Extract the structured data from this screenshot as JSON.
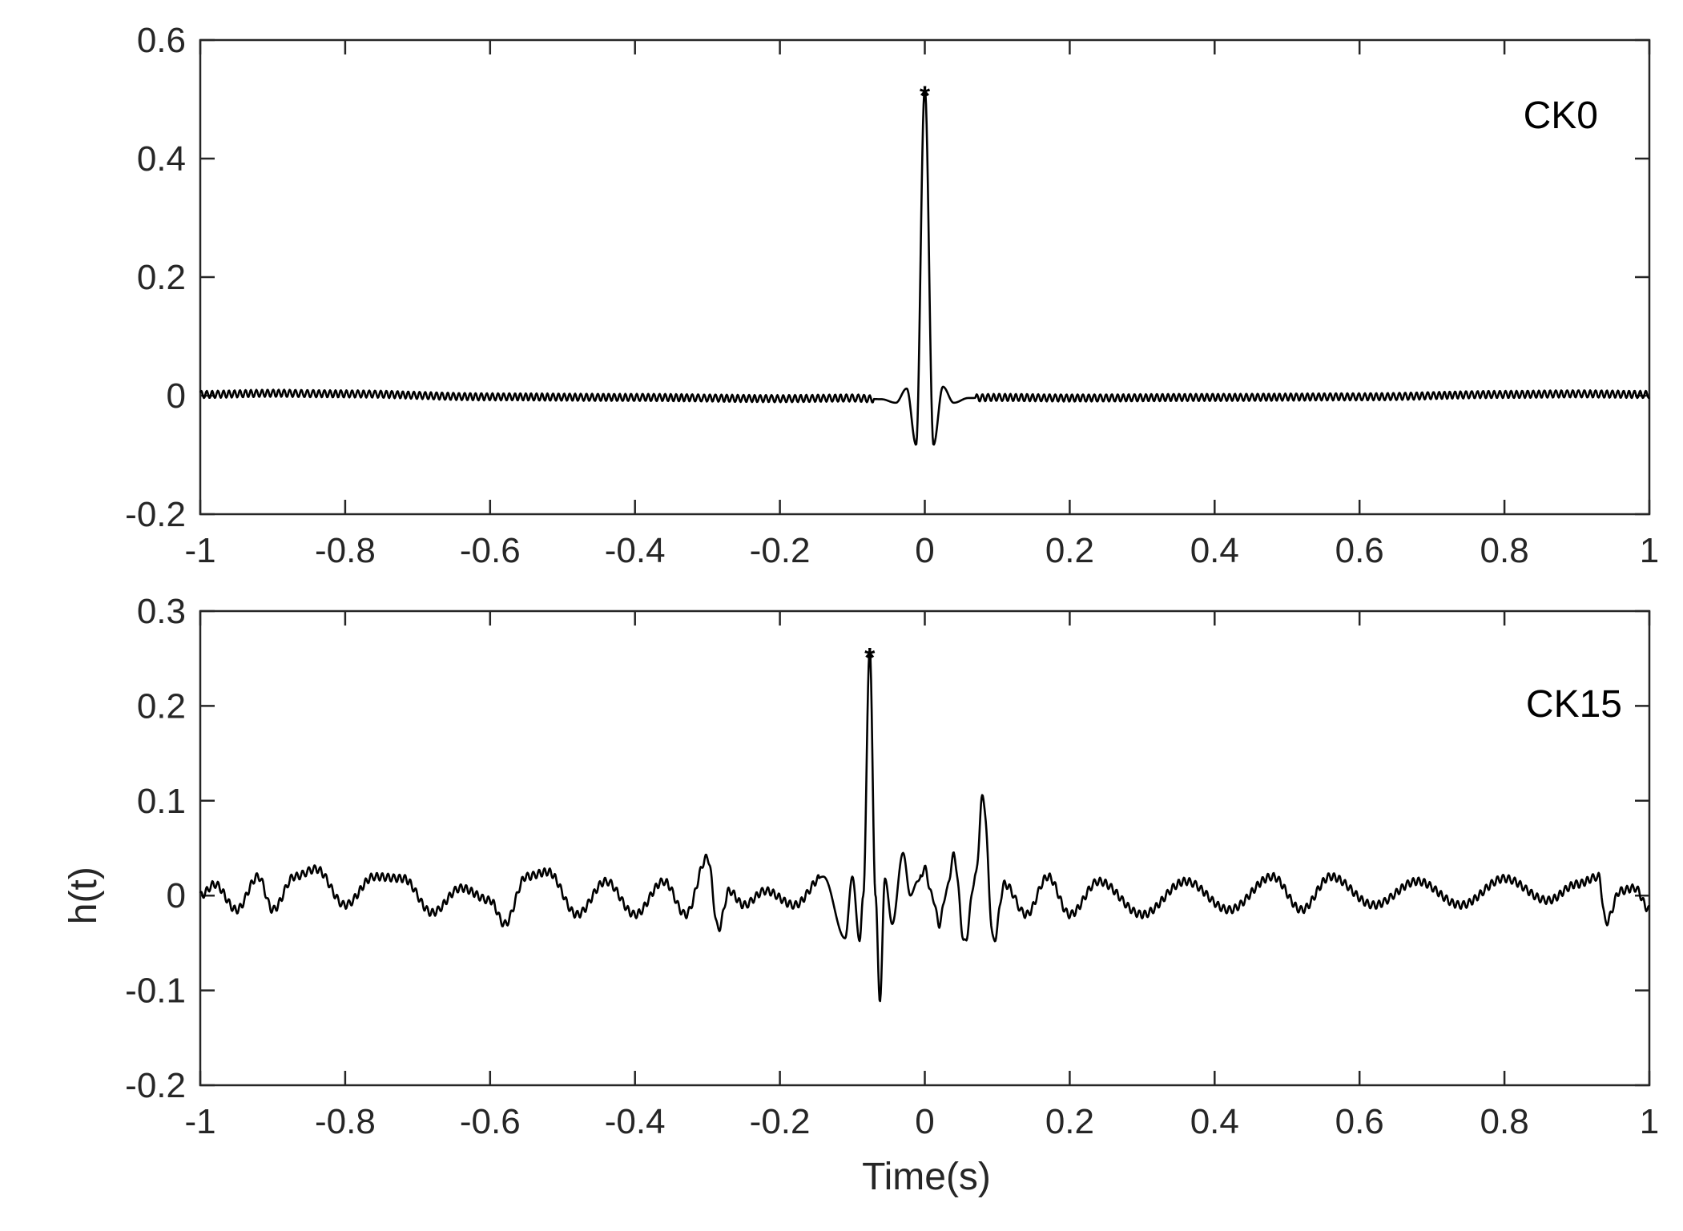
{
  "chart_data": [
    {
      "type": "line",
      "panel_label": "CK0",
      "xlabel": "",
      "ylabel": "",
      "xlim": [
        -1,
        1
      ],
      "ylim": [
        -0.2,
        0.6
      ],
      "x_ticks": [
        "-1",
        "-0.8",
        "-0.6",
        "-0.4",
        "-0.2",
        "0",
        "0.2",
        "0.4",
        "0.6",
        "0.8",
        "1"
      ],
      "y_ticks": [
        "-0.2",
        "0",
        "0.2",
        "0.4",
        "0.6"
      ],
      "grid": false,
      "line_color": "#000000",
      "peak_marker": {
        "x": 0.0,
        "y": 0.52,
        "symbol": "*"
      },
      "series": [
        {
          "x": [
            -1.0,
            -0.9,
            -0.8,
            -0.6,
            -0.4,
            -0.2,
            -0.1,
            -0.06,
            -0.04,
            -0.025,
            -0.012,
            0.0,
            0.012,
            0.025,
            0.04,
            0.06,
            0.1,
            0.2,
            0.4,
            0.6,
            0.8,
            0.9,
            1.0
          ],
          "values": [
            0.002,
            0.004,
            0.003,
            -0.002,
            -0.003,
            -0.005,
            -0.004,
            -0.006,
            -0.012,
            0.012,
            -0.083,
            0.52,
            -0.083,
            0.015,
            -0.012,
            -0.004,
            -0.003,
            -0.004,
            -0.003,
            -0.002,
            0.002,
            0.003,
            0.002
          ]
        }
      ]
    },
    {
      "type": "line",
      "panel_label": "CK15",
      "xlabel": "Time(s)",
      "ylabel": "h(t)",
      "xlim": [
        -1,
        1
      ],
      "ylim": [
        -0.2,
        0.3
      ],
      "x_ticks": [
        "-1",
        "-0.8",
        "-0.6",
        "-0.4",
        "-0.2",
        "0",
        "0.2",
        "0.4",
        "0.6",
        "0.8",
        "1"
      ],
      "y_ticks": [
        "-0.2",
        "-0.1",
        "0",
        "0.1",
        "0.2",
        "0.3"
      ],
      "grid": false,
      "line_color": "#000000",
      "peak_marker": {
        "x": -0.076,
        "y": 0.26,
        "symbol": "*"
      },
      "series": [
        {
          "x": [
            -1.0,
            -0.98,
            -0.95,
            -0.92,
            -0.9,
            -0.87,
            -0.84,
            -0.8,
            -0.76,
            -0.72,
            -0.68,
            -0.64,
            -0.6,
            -0.58,
            -0.55,
            -0.52,
            -0.48,
            -0.44,
            -0.4,
            -0.36,
            -0.33,
            -0.3,
            -0.285,
            -0.27,
            -0.25,
            -0.22,
            -0.18,
            -0.14,
            -0.11,
            -0.1,
            -0.09,
            -0.085,
            -0.076,
            -0.068,
            -0.062,
            -0.055,
            -0.045,
            -0.03,
            -0.02,
            -0.01,
            0.0,
            0.01,
            0.02,
            0.03,
            0.04,
            0.055,
            0.07,
            0.08,
            0.095,
            0.11,
            0.14,
            0.17,
            0.2,
            0.24,
            0.3,
            0.36,
            0.42,
            0.48,
            0.52,
            0.56,
            0.62,
            0.68,
            0.74,
            0.8,
            0.86,
            0.9,
            0.93,
            0.94,
            0.96,
            0.98,
            1.0
          ],
          "values": [
            0.0,
            0.012,
            -0.015,
            0.02,
            -0.015,
            0.02,
            0.028,
            -0.01,
            0.02,
            0.018,
            -0.018,
            0.008,
            -0.005,
            -0.03,
            0.02,
            0.025,
            -0.02,
            0.015,
            -0.02,
            0.015,
            -0.02,
            0.04,
            -0.035,
            0.005,
            -0.01,
            0.005,
            -0.01,
            0.02,
            -0.045,
            0.02,
            -0.048,
            0.0,
            0.26,
            0.0,
            -0.112,
            0.018,
            -0.03,
            0.045,
            0.0,
            0.015,
            0.028,
            0.0,
            -0.03,
            0.005,
            0.042,
            -0.05,
            0.02,
            0.105,
            -0.048,
            0.012,
            -0.02,
            0.02,
            -0.02,
            0.015,
            -0.02,
            0.015,
            -0.015,
            0.02,
            -0.015,
            0.02,
            -0.01,
            0.015,
            -0.01,
            0.018,
            -0.005,
            0.012,
            0.02,
            -0.028,
            0.005,
            0.008,
            -0.015
          ]
        }
      ]
    }
  ]
}
